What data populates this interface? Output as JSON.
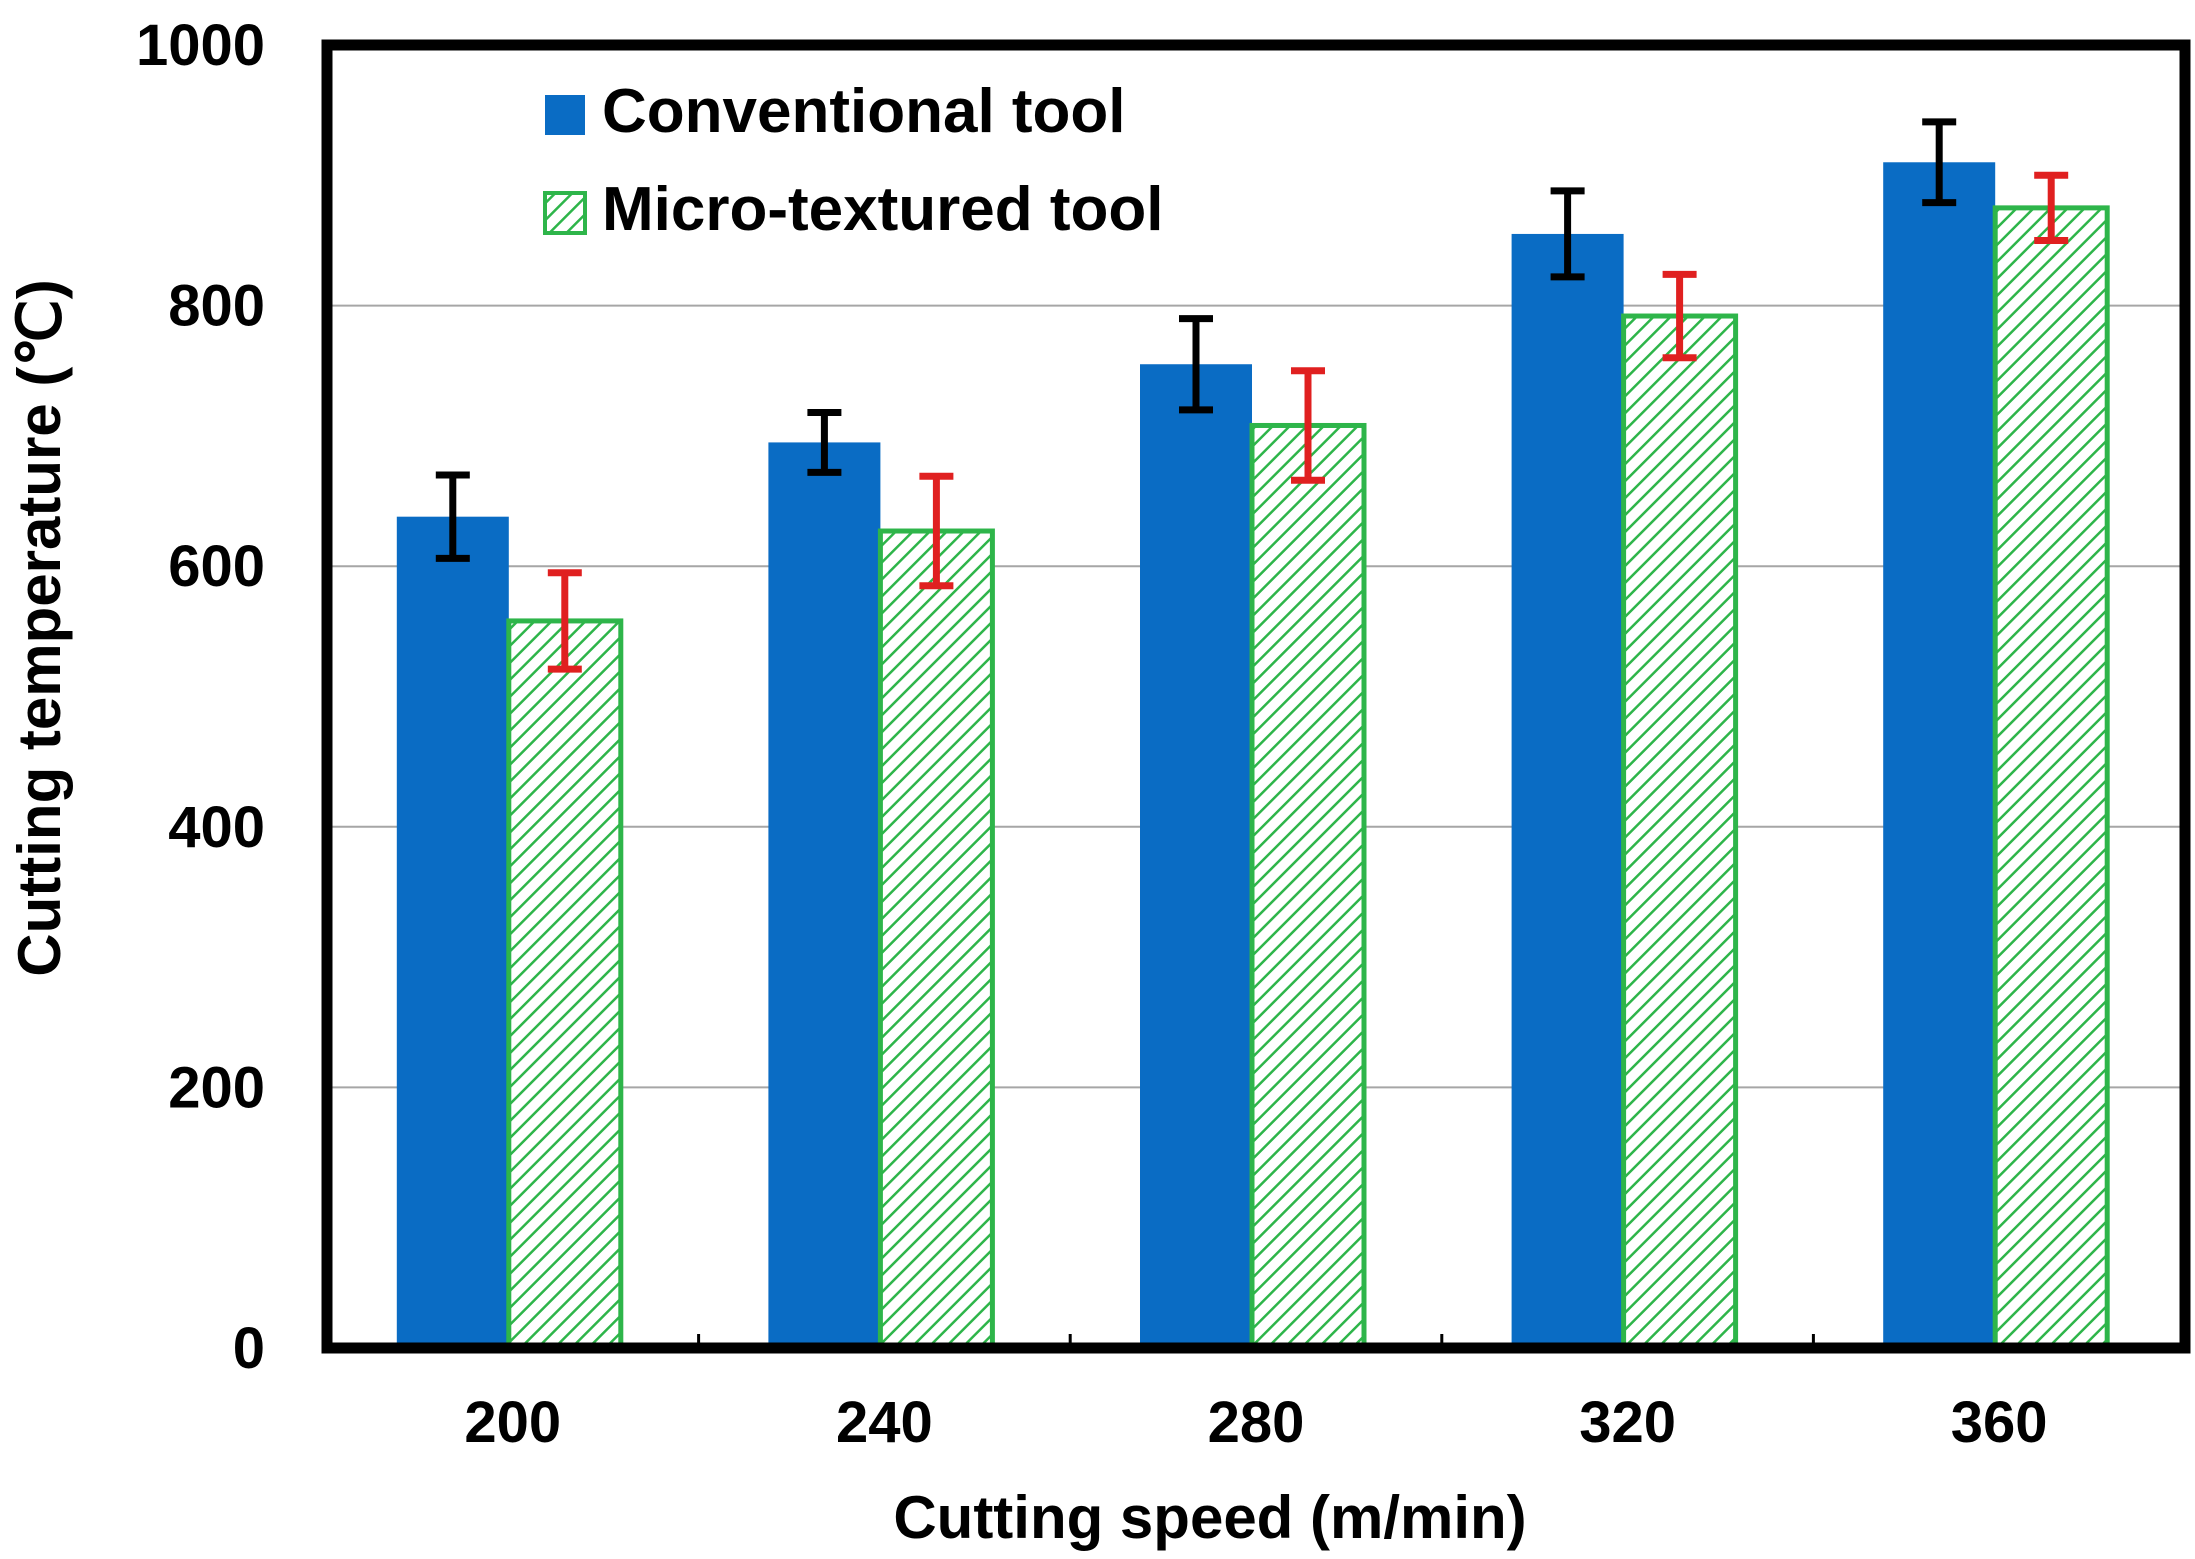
{
  "chart_data": {
    "type": "bar",
    "title": "",
    "xlabel": "Cutting speed (m/min)",
    "ylabel": "Cutting temperature (℃)",
    "categories": [
      "200",
      "240",
      "280",
      "320",
      "360"
    ],
    "ylim": [
      0,
      1000
    ],
    "yticks": [
      0,
      200,
      400,
      600,
      800,
      1000
    ],
    "ytick_labels": [
      "0",
      "200",
      "400",
      "600",
      "800",
      "1000"
    ],
    "grid": "horizontal",
    "legend_position": "top-left",
    "series": [
      {
        "name": "Conventional tool",
        "values": [
          638,
          695,
          755,
          855,
          910
        ],
        "errors": [
          32,
          23,
          35,
          33,
          31
        ],
        "color": "#0a6cc4",
        "fill": "solid",
        "error_color": "#000000"
      },
      {
        "name": "Micro-textured tool",
        "values": [
          558,
          627,
          708,
          792,
          875
        ],
        "errors": [
          37,
          42,
          42,
          32,
          25
        ],
        "color": "#2eb54a",
        "fill": "hatched",
        "error_color": "#e02020"
      }
    ]
  }
}
